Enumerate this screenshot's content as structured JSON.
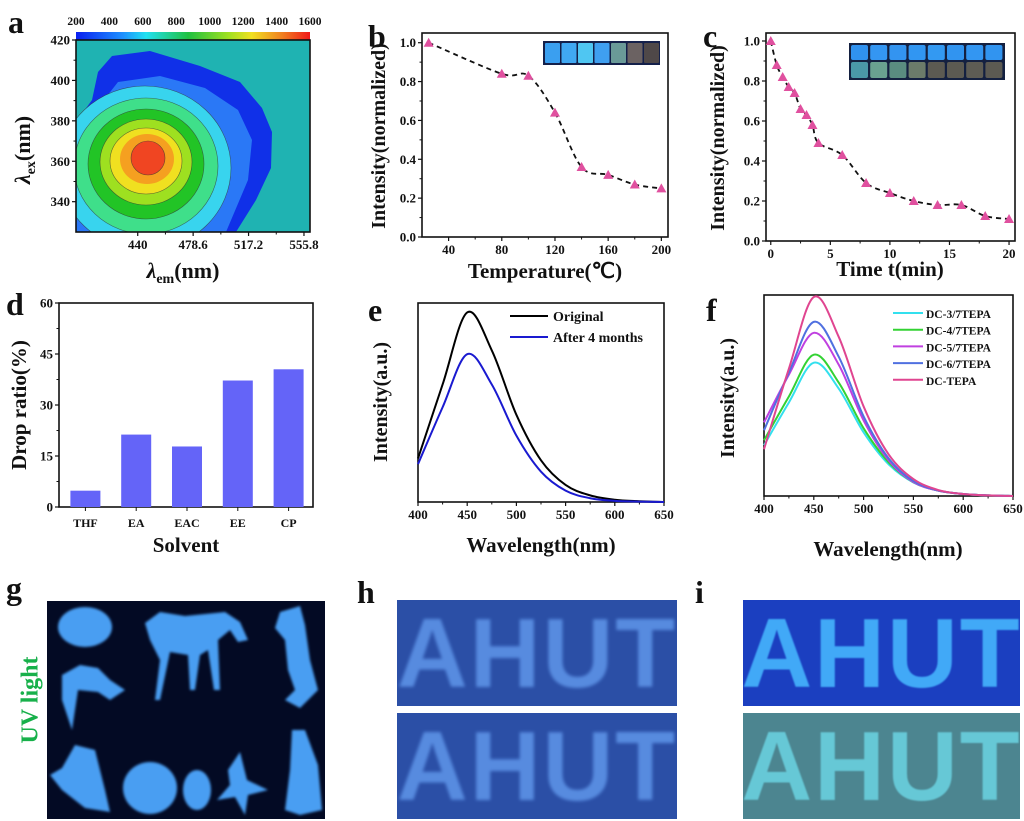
{
  "chart_data": [
    {
      "panel": "a",
      "type": "heatmap",
      "xlabel": {
        "symbol": "λ",
        "sub": "em",
        "unit": "(nm)"
      },
      "ylabel": {
        "symbol": "λ",
        "sub": "ex",
        "unit": "(nm)"
      },
      "xlim": [
        397,
        560
      ],
      "ylim": [
        325,
        420
      ],
      "xticks": [
        440,
        478.6,
        517.2,
        555.8
      ],
      "xtick_labels": [
        "440",
        "478.6",
        "517.2",
        "555.8"
      ],
      "yticks": [
        340,
        360,
        380,
        400,
        420
      ],
      "ytick_labels": [
        "340",
        "360",
        "380",
        "400",
        "420"
      ],
      "colorbar": {
        "ticks": [
          "200",
          "400",
          "600",
          "800",
          "1000",
          "1200",
          "1400",
          "1600"
        ],
        "range": [
          200,
          1600
        ],
        "colors": [
          "#0a1ff0",
          "#1e90ff",
          "#20e0f0",
          "#20c040",
          "#9ee020",
          "#f0e020",
          "#f08020",
          "#f01818"
        ]
      },
      "peak": {
        "em": 450,
        "ex": 362
      },
      "background_color": "#1fb3b2"
    },
    {
      "panel": "b",
      "type": "line",
      "xlabel": "Temperature(℃)",
      "ylabel": "Intensity(normalized)",
      "xlim": [
        20,
        205
      ],
      "ylim": [
        0,
        1.05
      ],
      "xticks": [
        40,
        80,
        120,
        160,
        200
      ],
      "yticks": [
        0.0,
        0.2,
        0.4,
        0.6,
        0.8,
        1.0
      ],
      "ytick_labels": [
        "0.0",
        "0.2",
        "0.4",
        "0.6",
        "0.8",
        "1.0"
      ],
      "x": [
        25,
        80,
        100,
        120,
        140,
        160,
        180,
        200
      ],
      "y": [
        1.0,
        0.84,
        0.83,
        0.64,
        0.36,
        0.32,
        0.27,
        0.25
      ],
      "marker": "triangle",
      "marker_color": "#e0509f",
      "line_style": "dashed",
      "inset_colors": [
        "#3a9ff0",
        "#40a8f2",
        "#4fc6f2",
        "#3f9ff0",
        "#6a9a98",
        "#6b6262",
        "#4f4848"
      ]
    },
    {
      "panel": "c",
      "type": "line",
      "xlabel": "Time t(min)",
      "ylabel": "Intensity(normalized)",
      "xlim": [
        -0.4,
        20.5
      ],
      "ylim": [
        0,
        1.04
      ],
      "xticks": [
        0,
        5,
        10,
        15,
        20
      ],
      "yticks": [
        0.0,
        0.2,
        0.4,
        0.6,
        0.8,
        1.0
      ],
      "ytick_labels": [
        "0.0",
        "0.2",
        "0.4",
        "0.6",
        "0.8",
        "1.0"
      ],
      "x": [
        0,
        0.5,
        1,
        1.5,
        2,
        2.5,
        3,
        3.5,
        4,
        6,
        8,
        10,
        12,
        14,
        16,
        18,
        20
      ],
      "y": [
        1.0,
        0.88,
        0.82,
        0.77,
        0.74,
        0.66,
        0.63,
        0.58,
        0.49,
        0.43,
        0.29,
        0.24,
        0.2,
        0.18,
        0.18,
        0.125,
        0.11
      ],
      "marker": "triangle",
      "marker_color": "#e0509f",
      "line_style": "dashed",
      "inset_top_colors": [
        "#3092f0",
        "#3496f2",
        "#3394f0",
        "#3196f2",
        "#3399f2",
        "#3194f0",
        "#3396f2",
        "#3194f0"
      ],
      "inset_bottom_colors": [
        "#4a98a8",
        "#6aa290",
        "#5a8c80",
        "#6c7c6a",
        "#5c5a52",
        "#5c5a52",
        "#5e5c54",
        "#5c5a52"
      ]
    },
    {
      "panel": "d",
      "type": "bar",
      "xlabel": "Solvent",
      "ylabel": "Drop ratio(%)",
      "ylim": [
        0,
        60
      ],
      "yticks": [
        0,
        15,
        30,
        45,
        60
      ],
      "categories": [
        "THF",
        "EA",
        "EAC",
        "EE",
        "CP"
      ],
      "values": [
        4.8,
        21.3,
        17.8,
        37.2,
        40.5
      ],
      "bar_color": "#6464f8"
    },
    {
      "panel": "e",
      "type": "line",
      "xlabel": "Wavelength(nm)",
      "ylabel": "Intensity(a.u.)",
      "xlim": [
        400,
        650
      ],
      "ylim": [
        0,
        1.05
      ],
      "xticks": [
        400,
        450,
        500,
        550,
        600,
        650
      ],
      "x": [
        400,
        425,
        450,
        475,
        500,
        525,
        550,
        575,
        600,
        625,
        650
      ],
      "series": [
        {
          "name": "Original",
          "color": "#000000",
          "values": [
            0.23,
            0.62,
            1.0,
            0.8,
            0.46,
            0.22,
            0.09,
            0.035,
            0.012,
            0.004,
            0
          ]
        },
        {
          "name": "After 4 months",
          "color": "#1a1ad0",
          "values": [
            0.2,
            0.5,
            0.78,
            0.62,
            0.35,
            0.16,
            0.06,
            0.02,
            0.006,
            0.002,
            0
          ]
        }
      ],
      "legend": "top-right"
    },
    {
      "panel": "f",
      "type": "line",
      "xlabel": "Wavelength(nm)",
      "ylabel": "Intensity(a.u.)",
      "xlim": [
        400,
        650
      ],
      "ylim": [
        0,
        1.01
      ],
      "xticks": [
        400,
        450,
        500,
        550,
        600,
        650
      ],
      "x": [
        400,
        425,
        450,
        475,
        500,
        525,
        550,
        575,
        600,
        625,
        650
      ],
      "series": [
        {
          "name": "DC-3/7TEPA",
          "color": "#33e0ee",
          "values": [
            0.255,
            0.47,
            0.67,
            0.54,
            0.32,
            0.16,
            0.068,
            0.027,
            0.01,
            0.003,
            0
          ]
        },
        {
          "name": "DC-4/7TEPA",
          "color": "#33d233",
          "values": [
            0.28,
            0.5,
            0.71,
            0.57,
            0.34,
            0.17,
            0.07,
            0.027,
            0.01,
            0.003,
            0
          ]
        },
        {
          "name": "DC-5/7TEPA",
          "color": "#c040e0",
          "values": [
            0.37,
            0.61,
            0.82,
            0.66,
            0.38,
            0.18,
            0.07,
            0.027,
            0.01,
            0.003,
            0
          ]
        },
        {
          "name": "DC-6/7TEPA",
          "color": "#5070e0",
          "values": [
            0.33,
            0.62,
            0.875,
            0.7,
            0.4,
            0.19,
            0.075,
            0.028,
            0.01,
            0.003,
            0
          ]
        },
        {
          "name": "DC-TEPA",
          "color": "#e04590",
          "values": [
            0.235,
            0.64,
            1.0,
            0.8,
            0.45,
            0.21,
            0.085,
            0.03,
            0.01,
            0.003,
            0
          ]
        }
      ],
      "legend": "top-right"
    }
  ],
  "photos": {
    "g": {
      "panel": "g",
      "side_label": "UV light",
      "side_label_color": "#17b04a"
    },
    "h": {
      "panel": "h",
      "top_text": "AHUT",
      "bottom_text": "AHUT"
    },
    "i": {
      "panel": "i",
      "top_text": "AHUT",
      "bottom_text": "AHUT"
    }
  }
}
